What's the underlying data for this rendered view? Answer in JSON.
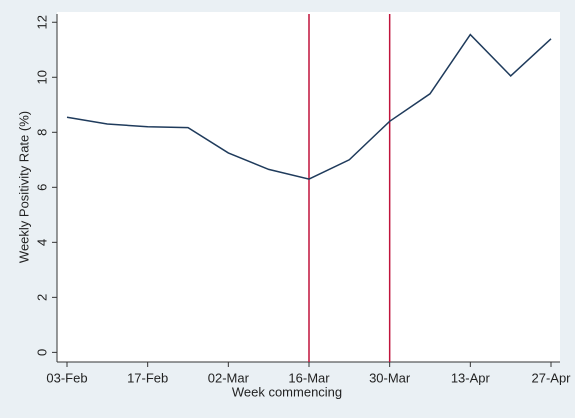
{
  "chart_data": {
    "type": "line",
    "x_label": "Week commencing",
    "y_label": "Weekly Positivity Rate (%)",
    "categories": [
      "03-Feb",
      null,
      "17-Feb",
      null,
      "02-Mar",
      null,
      "16-Mar",
      null,
      "30-Mar",
      null,
      "13-Apr",
      null,
      "27-Apr"
    ],
    "values": [
      8.55,
      8.3,
      8.2,
      8.17,
      7.25,
      6.65,
      6.3,
      7.0,
      8.4,
      9.4,
      11.55,
      10.05,
      11.4
    ],
    "color": "#1f3b5c",
    "reference_lines": [
      "16-Mar",
      "30-Mar"
    ],
    "reference_color": "#c0143c",
    "ylim": [
      -0.35,
      12.3
    ],
    "yticks": [
      0,
      2,
      4,
      6,
      8,
      10,
      12
    ],
    "grid": false
  }
}
